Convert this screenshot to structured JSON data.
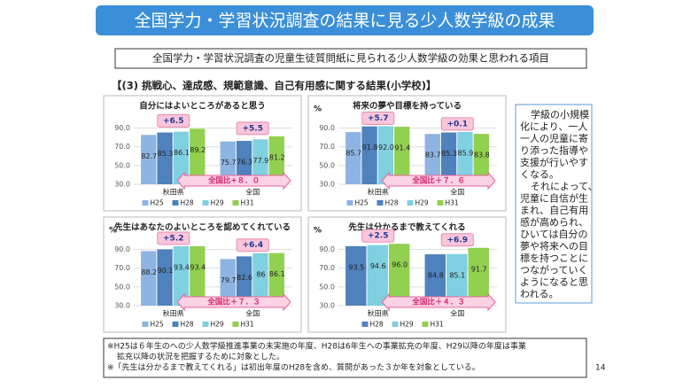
{
  "header": {
    "title": "全国学力・学習状況調査の結果に見る少人数学級の成果",
    "subtitle": "全国学力・学習状況調査の児童生徒質問紙に見られる少人数学級の効果と思われる項目",
    "section": "【(3) 挑戦心、達成感、規範意識、自己有用感に関する結果(小学校)】"
  },
  "chart_data": [
    {
      "type": "bar",
      "title": "自分にはよいところがあると思う",
      "categories": [
        "秋田県",
        "全国"
      ],
      "series": [
        {
          "name": "H25",
          "color": "#8db4e2",
          "values": [
            82.7,
            75.7
          ]
        },
        {
          "name": "H28",
          "color": "#4f81bd",
          "values": [
            85.3,
            76.3
          ]
        },
        {
          "name": "H29",
          "color": "#7fd0e0",
          "values": [
            86.1,
            77.9
          ]
        },
        {
          "name": "H31",
          "color": "#92d050",
          "values": [
            89.2,
            81.2
          ]
        }
      ],
      "ylim": [
        30,
        100
      ],
      "yticks": [
        {
          "value": 30,
          "label": "30.0"
        },
        {
          "value": 50,
          "label": "50.0"
        },
        {
          "value": 70,
          "label": "70.0"
        },
        {
          "value": 90,
          "label": "90.0"
        }
      ],
      "annotations": [
        "+6.5",
        "+5.5"
      ],
      "comparison": "全国比+８．０"
    },
    {
      "type": "bar",
      "title": "将来の夢や目標を持っている",
      "unit": "%",
      "categories": [
        "秋田県",
        "全国"
      ],
      "series": [
        {
          "name": "H25",
          "color": "#8db4e2",
          "values": [
            85.7,
            83.7
          ]
        },
        {
          "name": "H28",
          "color": "#4f81bd",
          "values": [
            91.8,
            85.3
          ]
        },
        {
          "name": "H29",
          "color": "#7fd0e0",
          "values": [
            92.0,
            85.9
          ]
        },
        {
          "name": "H31",
          "color": "#92d050",
          "values": [
            91.4,
            83.8
          ]
        }
      ],
      "value_labels": [
        [
          "85.7",
          "83.7"
        ],
        [
          "91.8",
          "85.3"
        ],
        [
          "92.0",
          "85.9"
        ],
        [
          "91.4",
          "83.8"
        ]
      ],
      "ylim": [
        30,
        100
      ],
      "yticks": [
        {
          "value": 30,
          "label": "30.0"
        },
        {
          "value": 50,
          "label": "50.0"
        },
        {
          "value": 70,
          "label": "70.0"
        },
        {
          "value": 90,
          "label": "90.0"
        }
      ],
      "annotations": [
        "+5.7",
        "+0.1"
      ],
      "comparison": "全国比＋７．６"
    },
    {
      "type": "bar",
      "title": "先生はあなたのよいところを認めてくれている",
      "unit": "%",
      "categories": [
        "秋田県",
        "全国"
      ],
      "series": [
        {
          "name": "H25",
          "color": "#8db4e2",
          "values": [
            88.2,
            79.7
          ]
        },
        {
          "name": "H28",
          "color": "#4f81bd",
          "values": [
            90.1,
            82.6
          ]
        },
        {
          "name": "H29",
          "color": "#7fd0e0",
          "values": [
            93.4,
            86
          ]
        },
        {
          "name": "H31",
          "color": "#92d050",
          "values": [
            93.4,
            86.1
          ]
        }
      ],
      "ylim": [
        30,
        100
      ],
      "yticks": [
        {
          "value": 30,
          "label": "30.0"
        },
        {
          "value": 50,
          "label": "50.0"
        },
        {
          "value": 70,
          "label": "70.0"
        },
        {
          "value": 90,
          "label": "90.0"
        }
      ],
      "annotations": [
        "+5.2",
        "+6.4"
      ],
      "comparison": "全国比＋７．３"
    },
    {
      "type": "bar",
      "title": "先生は分かるまで教えてくれる",
      "unit": "%",
      "categories": [
        "秋田県",
        "全国"
      ],
      "series": [
        {
          "name": "H28",
          "color": "#4f81bd",
          "values": [
            93.5,
            84.8
          ]
        },
        {
          "name": "H29",
          "color": "#7fd0e0",
          "values": [
            94.6,
            85.1
          ]
        },
        {
          "name": "H31",
          "color": "#92d050",
          "values": [
            96.0,
            91.7
          ]
        }
      ],
      "value_labels": [
        [
          "93.5",
          "84.8"
        ],
        [
          "94.6",
          "85.1"
        ],
        [
          "96.0",
          "91.7"
        ]
      ],
      "ylim": [
        30,
        100
      ],
      "yticks": [
        {
          "value": 30,
          "label": "30.0"
        },
        {
          "value": 50,
          "label": "50.0"
        },
        {
          "value": 70,
          "label": "70.0"
        },
        {
          "value": 90,
          "label": "90.0"
        }
      ],
      "annotations": [
        "+2.5",
        "+6.9"
      ],
      "comparison": "全国比＋４．３"
    }
  ],
  "side_text": [
    "学級の小規模",
    "化により、一人",
    "一人の児童に寄",
    "り添った指導や",
    "支援が行いやす",
    "くなる。",
    "それによって、",
    "児童に自信が生",
    "まれ、自己有用",
    "感が高められ、",
    "ひいては自分の",
    "夢や将来への目",
    "標を持つことに",
    "つながっていく",
    "ようになると思",
    "われる。"
  ],
  "notes": [
    "※H25は６年生のへの少人数学級推進事業の未実施の年度、H28は6年生への事業拡充の年度、H29以降の年度は事業",
    "拡充以降の状況を把握するために対象とした。",
    "※「先生は分かるまで教えてくれる」は初出年度のH28を含め、質問があった３か年を対象としている。"
  ],
  "page_number": "14"
}
